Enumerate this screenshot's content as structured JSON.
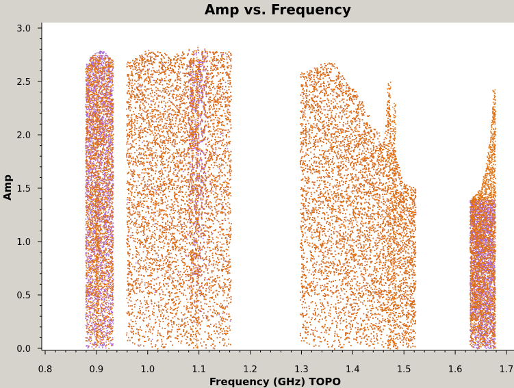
{
  "chart_data": {
    "type": "scatter",
    "title": "Amp vs. Frequency",
    "xlabel": "Frequency (GHz) TOPO",
    "ylabel": "Amp",
    "xlim": [
      0.8,
      1.7
    ],
    "ylim": [
      0.0,
      3.0
    ],
    "x_ticks": [
      "0.8",
      "0.9",
      "1.0",
      "1.1",
      "1.2",
      "1.3",
      "1.4",
      "1.5",
      "1.6",
      "1.7"
    ],
    "y_ticks": [
      "0.0",
      "0.5",
      "1.0",
      "1.5",
      "2.0",
      "2.5",
      "3.0"
    ],
    "grid": false,
    "legend": "none",
    "colors": {
      "background": "#d6d2cc",
      "plot_area": "#ffffff",
      "series_purple": "#a864d8",
      "series_orange": "#e07010"
    },
    "series": [
      {
        "color": "#a864d8",
        "bands": [
          {
            "x": [
              0.878,
              0.932
            ],
            "y_max": 2.8
          },
          {
            "x": [
              0.958,
              1.162
            ],
            "y_max": 2.8
          },
          {
            "x": [
              1.297,
              1.522
            ],
            "y_max": 2.7
          },
          {
            "x": [
              1.628,
              1.677
            ],
            "y_max": 1.4
          }
        ]
      },
      {
        "color": "#e07010",
        "bands": [
          {
            "x": [
              0.878,
              0.932
            ],
            "y_max": 2.75
          },
          {
            "x": [
              0.958,
              1.162
            ],
            "y_max": 2.83
          },
          {
            "x": [
              1.297,
              1.522
            ],
            "y_max": 2.7
          },
          {
            "x": [
              1.628,
              1.677
            ],
            "y_max": 2.45
          }
        ]
      }
    ],
    "envelope": [
      {
        "x": 0.878,
        "y": 2.65
      },
      {
        "x": 0.89,
        "y": 2.75
      },
      {
        "x": 0.91,
        "y": 2.8
      },
      {
        "x": 0.932,
        "y": 2.7
      },
      {
        "x": 0.958,
        "y": 2.7
      },
      {
        "x": 1.0,
        "y": 2.8
      },
      {
        "x": 1.05,
        "y": 2.75
      },
      {
        "x": 1.09,
        "y": 2.83
      },
      {
        "x": 1.12,
        "y": 2.8
      },
      {
        "x": 1.162,
        "y": 2.78
      },
      {
        "x": 1.297,
        "y": 2.6
      },
      {
        "x": 1.33,
        "y": 2.65
      },
      {
        "x": 1.36,
        "y": 2.7
      },
      {
        "x": 1.38,
        "y": 2.55
      },
      {
        "x": 1.4,
        "y": 2.45
      },
      {
        "x": 1.42,
        "y": 2.3
      },
      {
        "x": 1.44,
        "y": 2.1
      },
      {
        "x": 1.46,
        "y": 1.95
      },
      {
        "x": 1.47,
        "y": 2.5
      },
      {
        "x": 1.48,
        "y": 1.85
      },
      {
        "x": 1.5,
        "y": 1.55
      },
      {
        "x": 1.522,
        "y": 1.5
      },
      {
        "x": 1.628,
        "y": 1.4
      },
      {
        "x": 1.65,
        "y": 1.5
      },
      {
        "x": 1.665,
        "y": 1.9
      },
      {
        "x": 1.677,
        "y": 2.45
      }
    ]
  }
}
